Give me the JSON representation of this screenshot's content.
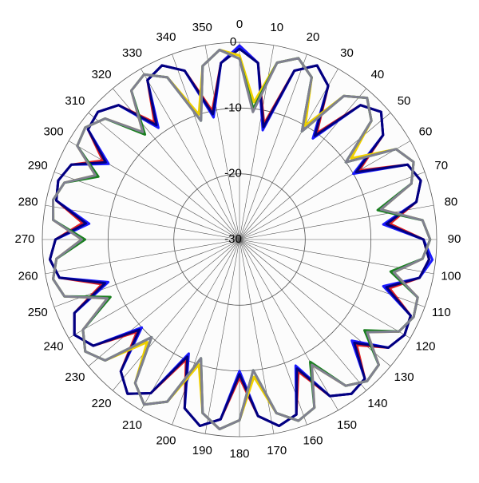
{
  "chart_data": {
    "type": "polar",
    "x": [
      0,
      6,
      12,
      18,
      24,
      30,
      36,
      42,
      48,
      54,
      60,
      66,
      72,
      78,
      84,
      90,
      96,
      102,
      108,
      114,
      120,
      126,
      132,
      138,
      144,
      150,
      156,
      162,
      168,
      174,
      180,
      186,
      192,
      198,
      204,
      210,
      216,
      222,
      228,
      234,
      240,
      246,
      252,
      258,
      264,
      270,
      276,
      282,
      288,
      294,
      300,
      306,
      312,
      318,
      324,
      330,
      336,
      342,
      348,
      354
    ],
    "xlim": [
      0,
      360
    ],
    "xticks": [
      0,
      10,
      20,
      30,
      40,
      50,
      60,
      70,
      80,
      90,
      100,
      110,
      120,
      130,
      140,
      150,
      160,
      170,
      180,
      190,
      200,
      210,
      220,
      230,
      240,
      250,
      260,
      270,
      280,
      290,
      300,
      310,
      320,
      330,
      340,
      350
    ],
    "ylim": [
      -30,
      0
    ],
    "yticks": [
      0,
      -10,
      -20,
      -30
    ],
    "grid": true,
    "series": [
      {
        "color": "#e02020",
        "values": [
          -0.5,
          -3,
          -12,
          -3,
          -1,
          -3,
          -10,
          -2.5,
          -1,
          -3,
          -9,
          -2,
          -1,
          -2.5,
          -7,
          -2,
          -1,
          -2,
          -6,
          -1.5,
          -1,
          -2,
          -6,
          -1.5,
          -1,
          -2.5,
          -8,
          -2,
          -1,
          -3,
          -9,
          -2.5,
          -1,
          -3,
          -10,
          -3,
          -1,
          -3,
          -9,
          -2.5,
          -1,
          -2.5,
          -8,
          -2,
          -1,
          -2,
          -6,
          -1.5,
          -1,
          -2,
          -6,
          -1.5,
          -1,
          -2.5,
          -8,
          -2,
          -1,
          -3,
          -10,
          -3
        ]
      },
      {
        "color": "#1a1aff",
        "values": [
          -0.5,
          -3,
          -13,
          -3,
          -1,
          -3,
          -11,
          -2.5,
          -1,
          -3,
          -10,
          -2,
          -1,
          -2.5,
          -8,
          -2,
          -0.5,
          -2,
          -7,
          -1.5,
          -1,
          -2,
          -7,
          -1.5,
          -1,
          -2.5,
          -9,
          -2,
          -1,
          -3,
          -10,
          -2.5,
          -1,
          -3,
          -11,
          -3,
          -1,
          -3,
          -10,
          -2.5,
          -1,
          -2.5,
          -9,
          -2,
          -1,
          -2,
          -7,
          -1.5,
          -1,
          -2,
          -7,
          -1.5,
          -1,
          -2.5,
          -9,
          -2,
          -1,
          -3,
          -11,
          -3
        ]
      },
      {
        "color": "#000080",
        "values": [
          -1,
          -3,
          -12.5,
          -3,
          -1,
          -3,
          -10.5,
          -2.5,
          -1,
          -3,
          -9.5,
          -2,
          -1,
          -2.5,
          -7.5,
          -2,
          -1,
          -2,
          -6.5,
          -1.5,
          -1,
          -2,
          -6.5,
          -1.5,
          -1,
          -2.5,
          -8.5,
          -2,
          -1,
          -3,
          -9.5,
          -2.5,
          -1,
          -3,
          -10.5,
          -3,
          -1,
          -3,
          -9.5,
          -2.5,
          -1,
          -2.5,
          -8.5,
          -2,
          -1,
          -2,
          -6.5,
          -1.5,
          -1,
          -2,
          -6.5,
          -1.5,
          -1,
          -2.5,
          -8.5,
          -2,
          -1,
          -3,
          -10.5,
          -3
        ]
      },
      {
        "color": "#f0d000",
        "values": [
          -2,
          -9,
          -2.5,
          -1,
          -3,
          -10,
          -3,
          -1,
          -3,
          -9,
          -2.5,
          -1,
          -2.5,
          -8,
          -2,
          -1,
          -2,
          -6,
          -1.5,
          -1,
          -2,
          -6,
          -1.5,
          -1,
          -2.5,
          -8,
          -2,
          -1,
          -3,
          -9,
          -2.5,
          -1,
          -3,
          -10,
          -3,
          -1,
          -3,
          -9,
          -2.5,
          -1,
          -2.5,
          -8,
          -2,
          -1,
          -2,
          -6,
          -1.5,
          -1,
          -2,
          -6,
          -1.5,
          -1,
          -2.5,
          -8,
          -2,
          -1,
          -3,
          -10,
          -3,
          -1
        ]
      },
      {
        "color": "#1a8020",
        "values": [
          -2.5,
          -10,
          -2.5,
          -1,
          -3,
          -11,
          -3,
          -1,
          -3,
          -10,
          -2.5,
          -1,
          -2.5,
          -8.5,
          -2,
          -1,
          -2,
          -6.5,
          -1.5,
          -1,
          -2,
          -6.5,
          -1.5,
          -1,
          -2.5,
          -8.5,
          -2,
          -1,
          -3,
          -10,
          -2.5,
          -1,
          -3,
          -11,
          -3,
          -1,
          -3,
          -10,
          -2.5,
          -1,
          -2.5,
          -8.5,
          -2,
          -1,
          -2,
          -6.5,
          -1.5,
          -1,
          -2,
          -6.5,
          -1.5,
          -1,
          -2.5,
          -8.5,
          -2,
          -1,
          -3,
          -11,
          -3,
          -1
        ]
      },
      {
        "color": "#808090",
        "values": [
          -2.5,
          -10.5,
          -2.5,
          -1,
          -3,
          -11,
          -3,
          -1,
          -3,
          -10,
          -2.5,
          -1,
          -2.5,
          -8,
          -2,
          -1,
          -2,
          -6,
          -1.5,
          -1,
          -2,
          -6,
          -1.5,
          -1,
          -2.5,
          -8,
          -2,
          -1,
          -3,
          -10,
          -2.5,
          -1,
          -3,
          -11,
          -3,
          -1,
          -3,
          -10,
          -2.5,
          -1,
          -2.5,
          -8,
          -2,
          -1,
          -2,
          -6,
          -1.5,
          -1,
          -2,
          -6,
          -1.5,
          -1,
          -2.5,
          -8,
          -2,
          -1,
          -3,
          -11,
          -3,
          -1
        ]
      }
    ]
  }
}
